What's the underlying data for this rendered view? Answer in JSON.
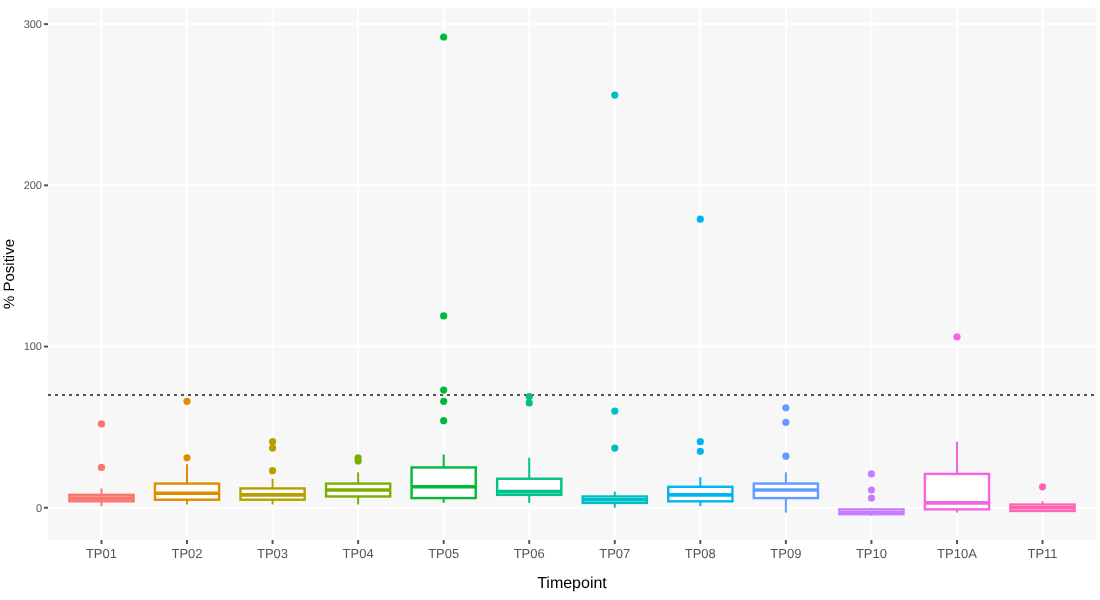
{
  "chart_data": {
    "type": "box",
    "xlabel": "Timepoint",
    "ylabel": "% Positive",
    "categories": [
      "TP01",
      "TP02",
      "TP03",
      "TP04",
      "TP05",
      "TP06",
      "TP07",
      "TP08",
      "TP09",
      "TP10",
      "TP10A",
      "TP11"
    ],
    "colors": [
      "#f8766d",
      "#de8c00",
      "#b79f00",
      "#7cae00",
      "#00ba38",
      "#00c08b",
      "#00bfc4",
      "#00b4f0",
      "#619cff",
      "#c77cff",
      "#f564e3",
      "#ff64b0"
    ],
    "boxes": [
      {
        "low": 1,
        "q1": 4,
        "median": 6,
        "q3": 8,
        "high": 12,
        "outliers": [
          25,
          52
        ]
      },
      {
        "low": 2,
        "q1": 5,
        "median": 9,
        "q3": 15,
        "high": 27,
        "outliers": [
          31,
          66
        ]
      },
      {
        "low": 2,
        "q1": 5,
        "median": 8,
        "q3": 12,
        "high": 18,
        "outliers": [
          23,
          37,
          41
        ]
      },
      {
        "low": 2,
        "q1": 7,
        "median": 11,
        "q3": 15,
        "high": 22,
        "outliers": [
          29,
          31
        ]
      },
      {
        "low": 3,
        "q1": 6,
        "median": 13,
        "q3": 25,
        "high": 33,
        "outliers": [
          54,
          66,
          73,
          119,
          292
        ]
      },
      {
        "low": 3,
        "q1": 8,
        "median": 10,
        "q3": 18,
        "high": 31,
        "outliers": [
          65,
          69
        ]
      },
      {
        "low": 0,
        "q1": 3,
        "median": 5,
        "q3": 7,
        "high": 10,
        "outliers": [
          37,
          60,
          256
        ]
      },
      {
        "low": 1,
        "q1": 4,
        "median": 8,
        "q3": 13,
        "high": 19,
        "outliers": [
          35,
          41,
          179
        ]
      },
      {
        "low": -3,
        "q1": 6,
        "median": 11,
        "q3": 15,
        "high": 22,
        "outliers": [
          32,
          53,
          62
        ]
      },
      {
        "low": -5,
        "q1": -4,
        "median": -3,
        "q3": -1,
        "high": 0,
        "outliers": [
          6,
          11,
          21
        ]
      },
      {
        "low": -3,
        "q1": -1,
        "median": 3,
        "q3": 21,
        "high": 41,
        "outliers": [
          106
        ]
      },
      {
        "low": -2,
        "q1": -2,
        "median": 0,
        "q3": 2,
        "high": 4,
        "outliers": [
          13
        ]
      }
    ],
    "ylim": [
      -20,
      310
    ],
    "yticks": [
      0,
      100,
      200,
      300
    ],
    "grid": true,
    "ref_lines": [
      {
        "axis": "y",
        "value": 70,
        "line_style": "dotted",
        "color": "#555555"
      }
    ]
  }
}
